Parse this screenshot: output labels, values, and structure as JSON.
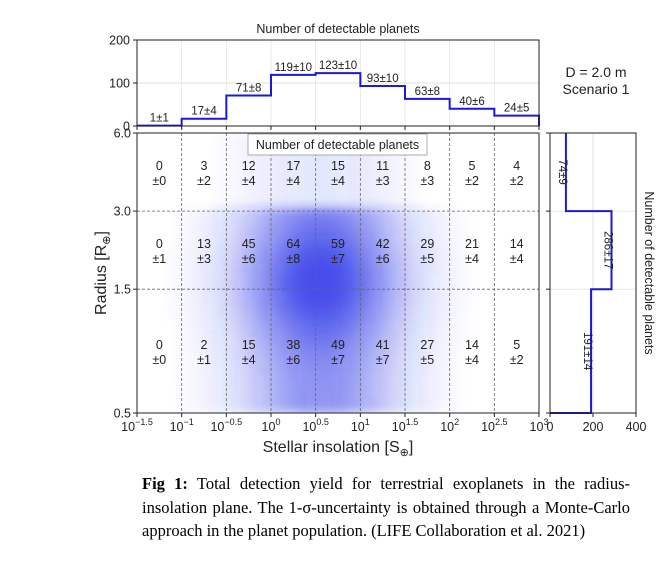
{
  "figure": {
    "annotation_lines": [
      "D = 2.0 m",
      "Scenario 1"
    ]
  },
  "chart_data": [
    {
      "type": "bar",
      "panel": "top-histogram",
      "title": "Number of detectable planets",
      "ylim": [
        0,
        200
      ],
      "yticks": [
        "0",
        "100",
        "200"
      ],
      "grid": true,
      "categories": [
        "10^-1.5–10^-1",
        "10^-1–10^-0.5",
        "10^-0.5–10^0",
        "10^0–10^0.5",
        "10^0.5–10^1",
        "10^1–10^1.5",
        "10^1.5–10^2",
        "10^2–10^2.5",
        "10^2.5–10^3"
      ],
      "values": [
        1,
        17,
        71,
        119,
        123,
        93,
        63,
        40,
        24
      ],
      "labels": [
        "1±1",
        "17±4",
        "71±8",
        "119±10",
        "123±10",
        "93±10",
        "63±8",
        "40±6",
        "24±5"
      ]
    },
    {
      "type": "heatmap",
      "panel": "main",
      "title": "Number of detectable planets",
      "xlabel": "Stellar insolation [S",
      "xlabel_sub": "⊕",
      "xlabel_end": "]",
      "ylabel": "Radius [R",
      "ylabel_sub": "⊕",
      "ylabel_end": "]",
      "x_scale": "log",
      "xlim_log10": [
        -1.5,
        3
      ],
      "xtick_exponents": [
        "−1.5",
        "−1",
        "−0.5",
        "0",
        "0.5",
        "1",
        "1.5",
        "2",
        "2.5",
        "3"
      ],
      "xtick_base": "10",
      "y_scale": "log",
      "ylim": [
        0.5,
        6.0
      ],
      "yticks": [
        "0.5",
        "1.5",
        "3.0",
        "6.0"
      ],
      "rows": [
        {
          "radius_range": "3.0–6.0",
          "counts": [
            "0",
            "3",
            "12",
            "17",
            "15",
            "11",
            "8",
            "5",
            "4"
          ],
          "errors": [
            "±0",
            "±2",
            "±4",
            "±4",
            "±4",
            "±3",
            "±3",
            "±2",
            "±2"
          ]
        },
        {
          "radius_range": "1.5–3.0",
          "counts": [
            "0",
            "13",
            "45",
            "64",
            "59",
            "42",
            "29",
            "21",
            "14"
          ],
          "errors": [
            "±1",
            "±3",
            "±6",
            "±8",
            "±7",
            "±6",
            "±5",
            "±4",
            "±4"
          ]
        },
        {
          "radius_range": "0.5–1.5",
          "counts": [
            "0",
            "2",
            "15",
            "38",
            "49",
            "41",
            "27",
            "14",
            "5"
          ],
          "errors": [
            "±0",
            "±1",
            "±4",
            "±6",
            "±7",
            "±7",
            "±5",
            "±4",
            "±2"
          ]
        }
      ]
    },
    {
      "type": "bar",
      "orientation": "horizontal",
      "panel": "right-histogram",
      "ylabel": "Number of detectable planets",
      "xlim": [
        0,
        400
      ],
      "xticks": [
        "0",
        "200",
        "400"
      ],
      "categories": [
        "3.0–6.0",
        "1.5–3.0",
        "0.5–1.5"
      ],
      "values": [
        74,
        286,
        191
      ],
      "labels": [
        "74±9",
        "286±17",
        "191±14"
      ]
    }
  ],
  "caption": {
    "label": "Fig 1:",
    "text": " Total detection yield for terrestrial exoplanets in the radius-insolation plane. The 1-σ-uncertainty is obtained through a Monte-Carlo approach in the planet population. (LIFE Collaboration et al. 2021)"
  }
}
